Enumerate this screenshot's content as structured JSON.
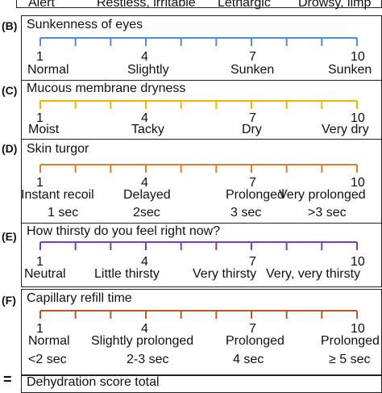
{
  "sectionA": {
    "labels": [
      "Alert",
      "Restless, irritable",
      "Lethargic",
      "Drowsy, limp"
    ]
  },
  "sections": [
    {
      "id": "(B)",
      "title": "Sunkenness of eyes",
      "color": "#4a90d9",
      "numbers": [
        "1",
        "4",
        "7",
        "10"
      ],
      "labels": [
        "Normal",
        "Slightly",
        "Sunken",
        "Sunken"
      ],
      "sublabels": []
    },
    {
      "id": "(C)",
      "title": "Mucous membrane dryness",
      "color": "#e8b800",
      "numbers": [
        "1",
        "4",
        "7",
        "10"
      ],
      "labels": [
        "Moist",
        "Tacky",
        "Dry",
        "Very dry"
      ],
      "sublabels": []
    },
    {
      "id": "(D)",
      "title": "Skin turgor",
      "color": "#e07b2c",
      "numbers": [
        "1",
        "4",
        "7",
        "10"
      ],
      "labels": [
        "Instant recoil",
        "Delayed",
        "Prolonged",
        "Very prolonged"
      ],
      "sublabels": [
        "1 sec",
        "2sec",
        "3 sec",
        ">3 sec"
      ]
    },
    {
      "id": "(E)",
      "title": "How thirsty do you feel right now?",
      "color": "#7b3fb0",
      "numbers": [
        "1",
        "4",
        "7",
        "10"
      ],
      "labels": [
        "Neutral",
        "Little thirsty",
        "Very thirsty",
        "Very, very thirsty"
      ],
      "sublabels": []
    },
    {
      "id": "(F)",
      "title": "Capillary refill time",
      "color": "#b5582a",
      "numbers": [
        "1",
        "4",
        "7",
        "10"
      ],
      "labels": [
        "Normal",
        "Slightly prolonged",
        "Prolonged",
        "Prolonged"
      ],
      "sublabels": [
        "<2 sec",
        "2-3 sec",
        "4 sec",
        "≥ 5 sec"
      ]
    }
  ],
  "footer": {
    "symbol": "=",
    "title": "Dehydration score total"
  }
}
